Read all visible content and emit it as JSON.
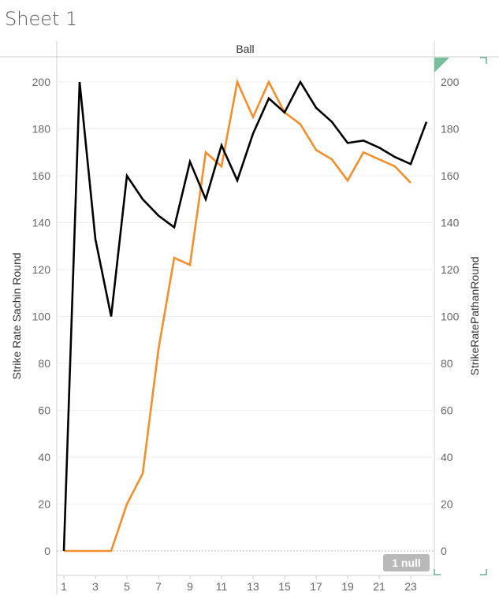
{
  "sheet": {
    "title": "Sheet 1"
  },
  "badges": {
    "nulls": "1 null"
  },
  "chart_data": {
    "type": "line",
    "title": "",
    "header": "Ball",
    "xlabel": "",
    "ylabel_left": "Strike Rate Sachin Round",
    "ylabel_right": "StrikeRatePathanRound",
    "x_ticks": [
      "1",
      "3",
      "5",
      "7",
      "9",
      "11",
      "13",
      "15",
      "17",
      "19",
      "21",
      "23"
    ],
    "y_ticks": [
      "0",
      "20",
      "40",
      "60",
      "80",
      "100",
      "120",
      "140",
      "160",
      "180",
      "200"
    ],
    "ylim": [
      0,
      200
    ],
    "xlim": [
      1,
      24
    ],
    "colors": {
      "sachin": "#000000",
      "pathan": "#f28e2b",
      "grid": "#eeeeee",
      "axis": "#cccccc",
      "corner": "#5fb38a"
    },
    "series": [
      {
        "axis": "left",
        "x": [
          1,
          2,
          3,
          4,
          5,
          6,
          7,
          8,
          9,
          10,
          11,
          12,
          13,
          14,
          15,
          16,
          17,
          18,
          19,
          20,
          21,
          22,
          23,
          24
        ],
        "values": [
          0,
          200,
          133,
          100,
          160,
          150,
          143,
          138,
          166,
          150,
          173,
          158,
          178,
          193,
          187,
          200,
          189,
          183,
          174,
          175,
          172,
          168,
          165,
          183
        ]
      },
      {
        "axis": "right",
        "x": [
          1,
          2,
          3,
          4,
          5,
          6,
          7,
          8,
          9,
          10,
          11,
          12,
          13,
          14,
          15,
          16,
          17,
          18,
          19,
          20,
          21,
          22,
          23
        ],
        "values": [
          0,
          0,
          0,
          0,
          20,
          33,
          86,
          125,
          122,
          170,
          164,
          200,
          185,
          200,
          187,
          182,
          171,
          167,
          158,
          170,
          167,
          164,
          157
        ]
      }
    ]
  }
}
